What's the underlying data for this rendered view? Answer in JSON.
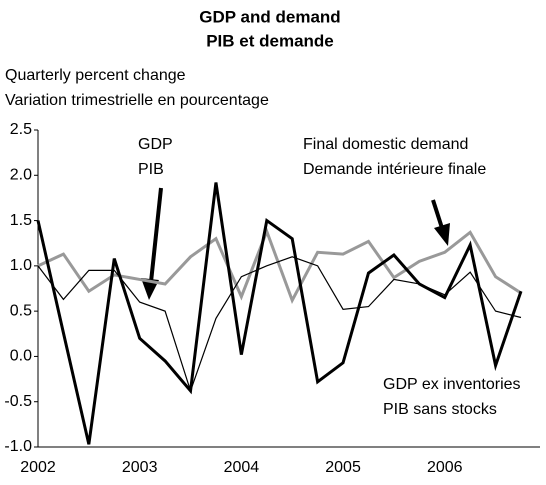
{
  "chart_data": {
    "type": "line",
    "title": "GDP and demand",
    "subtitle": "PIB et demande",
    "y_label": [
      "Quarterly percent change",
      "Variation trimestrielle en pourcentage"
    ],
    "annotations": [
      [
        "GDP",
        "PIB"
      ],
      [
        "Final domestic demand",
        "Demande intérieure finale"
      ],
      [
        "GDP ex inventories",
        "PIB sans stocks"
      ]
    ],
    "categories": [
      "2002",
      null,
      null,
      null,
      "2003",
      null,
      null,
      null,
      "2004",
      null,
      null,
      null,
      "2005",
      null,
      null,
      null,
      "2006",
      null,
      null,
      null
    ],
    "series": [
      {
        "name": "GDP",
        "color": "#000000",
        "values": [
          1.5,
          0.26,
          -0.97,
          1.08,
          0.2,
          -0.05,
          -0.38,
          1.92,
          0.02,
          1.5,
          1.3,
          -0.28,
          -0.07,
          0.92,
          1.12,
          0.8,
          0.65,
          1.23,
          -0.1,
          0.72
        ]
      },
      {
        "name": "Final domestic demand",
        "color": "#999999",
        "values": [
          1.0,
          1.13,
          0.72,
          0.9,
          0.85,
          0.8,
          1.1,
          1.3,
          0.66,
          1.38,
          0.62,
          1.15,
          1.13,
          1.27,
          0.87,
          1.05,
          1.15,
          1.37,
          0.88,
          0.7
        ]
      },
      {
        "name": "GDP ex inventories",
        "color": "#000000",
        "values": [
          1.0,
          0.63,
          0.95,
          0.95,
          0.6,
          0.5,
          -0.38,
          0.42,
          0.88,
          1.0,
          1.1,
          1.0,
          0.52,
          0.55,
          0.85,
          0.8,
          0.68,
          0.93,
          0.5,
          0.43
        ]
      }
    ],
    "ylim": [
      -1.0,
      2.5
    ],
    "yticks": [
      {
        "value": -1.0,
        "label": "-1.0"
      },
      {
        "value": -0.5,
        "label": "-0.5"
      },
      {
        "value": 0.0,
        "label": "0.0"
      },
      {
        "value": 0.5,
        "label": "0.5"
      },
      {
        "value": 1.0,
        "label": "1.0"
      },
      {
        "value": 1.5,
        "label": "1.5"
      },
      {
        "value": 2.0,
        "label": "2.0"
      },
      {
        "value": 2.5,
        "label": "2.5"
      }
    ]
  }
}
